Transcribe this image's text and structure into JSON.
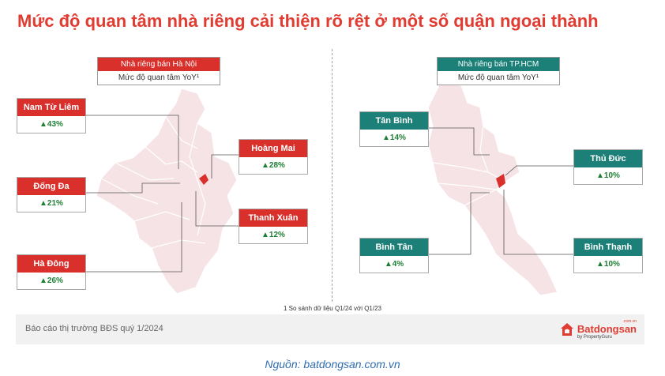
{
  "title": "Mức độ quan tâm nhà riêng cải thiện rõ rệt ở một số quận ngoại thành",
  "hanoi": {
    "legend_header": "Nhà riêng bán Hà Nội",
    "legend_sub": "Mức độ quan tâm YoY¹",
    "districts": [
      {
        "name": "Nam Từ Liêm",
        "value": "▲43%"
      },
      {
        "name": "Đống Đa",
        "value": "▲21%"
      },
      {
        "name": "Hà Đông",
        "value": "▲26%"
      },
      {
        "name": "Hoàng Mai",
        "value": "▲28%"
      },
      {
        "name": "Thanh Xuân",
        "value": "▲12%"
      }
    ]
  },
  "hcm": {
    "legend_header": "Nhà riêng bán TP.HCM",
    "legend_sub": "Mức độ quan tâm YoY¹",
    "districts": [
      {
        "name": "Tân Bình",
        "value": "▲14%"
      },
      {
        "name": "Thủ Đức",
        "value": "▲10%"
      },
      {
        "name": "Bình Tân",
        "value": "▲4%"
      },
      {
        "name": "Bình Thạnh",
        "value": "▲10%"
      }
    ]
  },
  "footnote": "1 So sánh dữ liệu Q1/24 với Q1/23",
  "report_label": "Báo cáo thị trường BĐS quý 1/2024",
  "logo": {
    "name": "Batdongsan",
    "sub": "by PropertyGuru",
    "domain": ".com.vn"
  },
  "source": "Nguồn: batdongsan.com.vn",
  "colors": {
    "accent": "#e03c31",
    "hcm": "#1c7f78",
    "map_fill": "#f6e3e6",
    "up": "#1e7e34"
  }
}
